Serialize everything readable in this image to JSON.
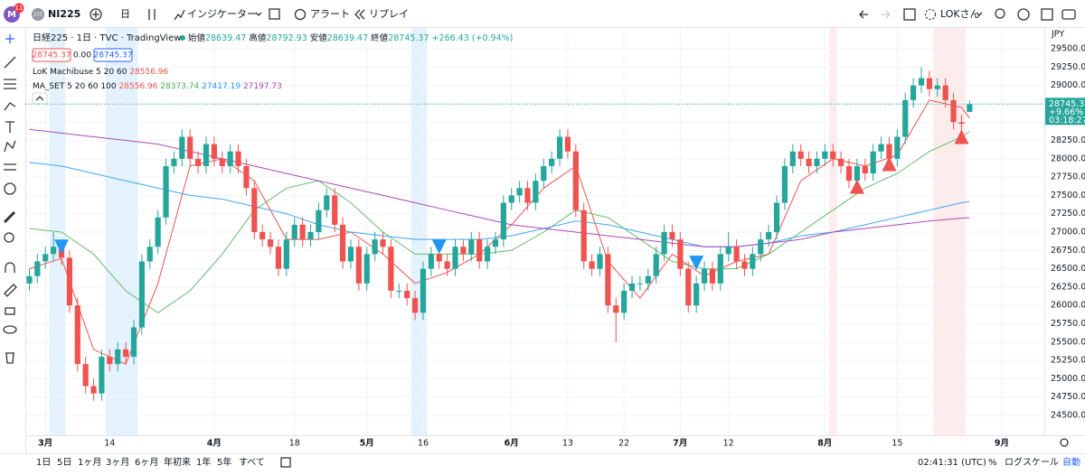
{
  "toolbar": {
    "badge": "11",
    "avatar": "M",
    "symbol_icon": "225",
    "symbol": "NI225",
    "interval": "日",
    "indicators": "インジケーター",
    "alert": "アラート",
    "replay": "リプレイ",
    "user": "LOKさん"
  },
  "legend": {
    "title": "日経225 · 1日 · TVC · TradingView",
    "ohlc_labels": [
      "始値",
      "高値",
      "安値",
      "終値"
    ],
    "change": "+266.43",
    "change_pct": "(+0.94%)",
    "spread": "0.00",
    "indicator1": "LoK Machibuse 5 20 60",
    "indicator2": "MA_SET 5 20 60 100"
  },
  "chart_data": {
    "type": "candlestick",
    "up_color": "#26a69a",
    "down_color": "#ef5350",
    "grid": true,
    "currency": "JPY",
    "candles": [
      [
        26300,
        26500,
        26200,
        26400
      ],
      [
        26400,
        26700,
        26300,
        26600
      ],
      [
        26600,
        26800,
        26500,
        26700
      ],
      [
        26700,
        27000,
        26600,
        26800
      ],
      [
        26800,
        26900,
        26550,
        26650
      ],
      [
        26650,
        26750,
        25900,
        26000
      ],
      [
        26000,
        26100,
        25100,
        25200
      ],
      [
        25200,
        25300,
        24800,
        24900
      ],
      [
        24900,
        25000,
        24700,
        24800
      ],
      [
        24800,
        25400,
        24700,
        25300
      ],
      [
        25300,
        25400,
        25100,
        25200
      ],
      [
        25200,
        25500,
        25100,
        25400
      ],
      [
        25400,
        25500,
        25200,
        25300
      ],
      [
        25300,
        25800,
        25200,
        25700
      ],
      [
        25700,
        26700,
        25600,
        26600
      ],
      [
        26600,
        26900,
        26500,
        26800
      ],
      [
        26800,
        27300,
        26700,
        27200
      ],
      [
        27200,
        28000,
        27100,
        27900
      ],
      [
        27900,
        28100,
        27800,
        28000
      ],
      [
        28000,
        28400,
        27900,
        28300
      ],
      [
        28300,
        28400,
        27900,
        28000
      ],
      [
        28000,
        28100,
        27800,
        27900
      ],
      [
        27900,
        28300,
        27800,
        28200
      ],
      [
        28200,
        28300,
        27900,
        28000
      ],
      [
        28000,
        28100,
        27800,
        27900
      ],
      [
        27900,
        28200,
        27800,
        28100
      ],
      [
        28100,
        28200,
        27800,
        27900
      ],
      [
        27900,
        28000,
        27500,
        27600
      ],
      [
        27600,
        27700,
        26900,
        27000
      ],
      [
        27000,
        27100,
        26800,
        26900
      ],
      [
        26900,
        27000,
        26700,
        26800
      ],
      [
        26800,
        26900,
        26400,
        26500
      ],
      [
        26500,
        27000,
        26400,
        26900
      ],
      [
        26900,
        27200,
        26800,
        27100
      ],
      [
        27100,
        27200,
        26800,
        26900
      ],
      [
        26900,
        27100,
        26800,
        27000
      ],
      [
        27000,
        27400,
        26900,
        27300
      ],
      [
        27300,
        27600,
        27200,
        27500
      ],
      [
        27500,
        27600,
        27000,
        27100
      ],
      [
        27100,
        27200,
        26500,
        26600
      ],
      [
        26600,
        26900,
        26500,
        26800
      ],
      [
        26800,
        26900,
        26200,
        26300
      ],
      [
        26300,
        26800,
        26200,
        26700
      ],
      [
        26700,
        27000,
        26600,
        26900
      ],
      [
        26900,
        27000,
        26700,
        26800
      ],
      [
        26800,
        26900,
        26100,
        26200
      ],
      [
        26200,
        26300,
        26100,
        26200
      ],
      [
        26200,
        26300,
        26000,
        26100
      ],
      [
        26100,
        26200,
        25800,
        25900
      ],
      [
        25900,
        26600,
        25800,
        26500
      ],
      [
        26500,
        26800,
        26400,
        26700
      ],
      [
        26700,
        26800,
        26500,
        26600
      ],
      [
        26600,
        26700,
        26400,
        26500
      ],
      [
        26500,
        26900,
        26400,
        26800
      ],
      [
        26800,
        26900,
        26600,
        26700
      ],
      [
        26700,
        27000,
        26600,
        26900
      ],
      [
        26900,
        27000,
        26500,
        26600
      ],
      [
        26600,
        26900,
        26500,
        26800
      ],
      [
        26800,
        27000,
        26700,
        26900
      ],
      [
        26900,
        27500,
        26800,
        27400
      ],
      [
        27400,
        27600,
        27300,
        27500
      ],
      [
        27500,
        27700,
        27400,
        27600
      ],
      [
        27600,
        27700,
        27300,
        27400
      ],
      [
        27400,
        27800,
        27300,
        27700
      ],
      [
        27700,
        28000,
        27600,
        27900
      ],
      [
        27900,
        28100,
        27800,
        28000
      ],
      [
        28000,
        28400,
        27900,
        28300
      ],
      [
        28300,
        28400,
        28000,
        28100
      ],
      [
        28100,
        28200,
        27200,
        27300
      ],
      [
        27300,
        27400,
        26500,
        26600
      ],
      [
        26600,
        26700,
        26400,
        26500
      ],
      [
        26500,
        26800,
        26400,
        26700
      ],
      [
        26700,
        26800,
        25900,
        26000
      ],
      [
        26000,
        26100,
        25500,
        25900
      ],
      [
        25900,
        26300,
        25800,
        26200
      ],
      [
        26200,
        26400,
        26100,
        26300
      ],
      [
        26300,
        26400,
        26200,
        26300
      ],
      [
        26300,
        26500,
        26200,
        26400
      ],
      [
        26400,
        26800,
        26300,
        26700
      ],
      [
        26700,
        27100,
        26600,
        27000
      ],
      [
        27000,
        27100,
        26800,
        26900
      ],
      [
        26900,
        27000,
        26400,
        26500
      ],
      [
        26500,
        26600,
        25900,
        26000
      ],
      [
        26000,
        26400,
        25900,
        26300
      ],
      [
        26300,
        26600,
        26200,
        26500
      ],
      [
        26500,
        26600,
        26200,
        26300
      ],
      [
        26300,
        26800,
        26200,
        26700
      ],
      [
        26700,
        27000,
        26600,
        26800
      ],
      [
        26800,
        26900,
        26500,
        26600
      ],
      [
        26600,
        26700,
        26400,
        26500
      ],
      [
        26500,
        26800,
        26400,
        26700
      ],
      [
        26700,
        27000,
        26600,
        26900
      ],
      [
        26900,
        27100,
        26800,
        27000
      ],
      [
        27000,
        27500,
        26900,
        27400
      ],
      [
        27400,
        28000,
        27300,
        27900
      ],
      [
        27900,
        28200,
        27800,
        28100
      ],
      [
        28100,
        28200,
        27900,
        28000
      ],
      [
        28000,
        28100,
        27800,
        27900
      ],
      [
        27900,
        28100,
        27800,
        28000
      ],
      [
        28000,
        28200,
        27900,
        28100
      ],
      [
        28100,
        28200,
        27900,
        28000
      ],
      [
        28000,
        28100,
        27800,
        27900
      ],
      [
        27900,
        28000,
        27600,
        27700
      ],
      [
        27700,
        28000,
        27600,
        27900
      ],
      [
        27900,
        28000,
        27700,
        27800
      ],
      [
        27800,
        28200,
        27700,
        28100
      ],
      [
        28100,
        28300,
        28000,
        28200
      ],
      [
        28200,
        28300,
        27900,
        28000
      ],
      [
        28000,
        28400,
        27900,
        28300
      ],
      [
        28300,
        28900,
        28200,
        28800
      ],
      [
        28800,
        29100,
        28700,
        29000
      ],
      [
        29000,
        29250,
        28900,
        29100
      ],
      [
        29100,
        29200,
        28850,
        28950
      ],
      [
        28950,
        29100,
        28850,
        29000
      ],
      [
        29000,
        29100,
        28700,
        28800
      ],
      [
        28800,
        28900,
        28400,
        28500
      ],
      [
        28500,
        28600,
        28380,
        28478.94
      ],
      [
        28639.47,
        28792.93,
        28639.47,
        28745.37
      ]
    ],
    "ma": [
      {
        "color": "#f05350",
        "x": [
          0,
          4,
          8,
          12,
          16,
          20,
          24,
          28,
          32,
          36,
          40,
          44,
          48,
          52,
          56,
          60,
          64,
          68,
          72,
          76,
          80,
          84,
          88,
          92,
          96,
          100,
          104,
          108,
          112,
          116,
          117
        ],
        "values": [
          26500,
          26640,
          25400,
          25200,
          26300,
          27900,
          28000,
          27700,
          26900,
          26900,
          27000,
          26700,
          26300,
          26450,
          26700,
          27100,
          27600,
          27900,
          26600,
          26100,
          26700,
          26400,
          26600,
          26700,
          27700,
          28000,
          27900,
          28050,
          28800,
          28700,
          28556.96
        ]
      },
      {
        "color": "#66bb6a",
        "x": [
          0,
          4,
          8,
          12,
          16,
          20,
          24,
          28,
          32,
          36,
          40,
          44,
          48,
          52,
          56,
          60,
          64,
          68,
          72,
          76,
          80,
          84,
          88,
          92,
          96,
          100,
          104,
          108,
          112,
          116,
          117
        ],
        "values": [
          27050,
          27000,
          26700,
          26200,
          25900,
          26200,
          26700,
          27300,
          27600,
          27700,
          27400,
          27000,
          26700,
          26700,
          26700,
          26750,
          27000,
          27300,
          27200,
          26900,
          26600,
          26500,
          26500,
          26700,
          27000,
          27300,
          27600,
          27800,
          28100,
          28300,
          28373.74
        ]
      },
      {
        "color": "#42a5f5",
        "x": [
          0,
          4,
          8,
          12,
          16,
          20,
          24,
          28,
          32,
          36,
          40,
          44,
          48,
          52,
          56,
          60,
          64,
          68,
          72,
          76,
          80,
          84,
          88,
          92,
          96,
          100,
          104,
          108,
          112,
          116,
          117
        ],
        "values": [
          27950,
          27900,
          27800,
          27700,
          27600,
          27500,
          27450,
          27350,
          27250,
          27100,
          27000,
          26950,
          26900,
          26900,
          26900,
          26950,
          27050,
          27150,
          27100,
          27000,
          26900,
          26800,
          26800,
          26850,
          26950,
          27000,
          27100,
          27200,
          27300,
          27400,
          27417.19
        ]
      },
      {
        "color": "#ab47bc",
        "x": [
          0,
          4,
          8,
          12,
          16,
          20,
          24,
          28,
          32,
          36,
          40,
          44,
          48,
          52,
          56,
          60,
          64,
          68,
          72,
          76,
          80,
          84,
          88,
          92,
          96,
          100,
          104,
          108,
          112,
          116,
          117
        ],
        "values": [
          28400,
          28350,
          28300,
          28250,
          28200,
          28100,
          28000,
          27900,
          27800,
          27700,
          27600,
          27500,
          27400,
          27300,
          27200,
          27100,
          27050,
          27000,
          26950,
          26900,
          26850,
          26800,
          26800,
          26850,
          26900,
          27000,
          27050,
          27100,
          27150,
          27190,
          27197.73
        ]
      }
    ],
    "highlights": [
      {
        "from": 3,
        "to": 4,
        "color": "#e3f2fd"
      },
      {
        "from": 10,
        "to": 13,
        "color": "#e3f2fd"
      },
      {
        "from": 48,
        "to": 49,
        "color": "#e3f2fd"
      },
      {
        "from": 100,
        "to": 100,
        "color": "#fdecec"
      },
      {
        "from": 113,
        "to": 116,
        "color": "#fdecec"
      }
    ],
    "signals": [
      {
        "x": 4,
        "y": 26800,
        "shape": "down",
        "color": "#2196f3"
      },
      {
        "x": 51,
        "y": 26800,
        "shape": "down",
        "color": "#2196f3"
      },
      {
        "x": 83,
        "y": 26580,
        "shape": "down",
        "color": "#2196f3"
      },
      {
        "x": 103,
        "y": 27620,
        "shape": "up",
        "color": "#f05350"
      },
      {
        "x": 107,
        "y": 27930,
        "shape": "up",
        "color": "#f05350"
      },
      {
        "x": 116,
        "y": 28300,
        "shape": "up",
        "color": "#f05350"
      }
    ],
    "last_price": {
      "change_pct": "+9.66%",
      "countdown": "03:18:27"
    },
    "xlim": [
      -0.5,
      126.3
    ],
    "xticks": [
      {
        "value": 2,
        "label": "3月"
      },
      10,
      {
        "value": 23,
        "label": "4月"
      },
      33,
      {
        "value": 42,
        "label": "5月"
      },
      49,
      {
        "value": 60,
        "label": "6月"
      },
      67,
      74,
      {
        "value": 81,
        "label": "7月"
      },
      87,
      {
        "value": 99,
        "label": "8月"
      },
      108,
      {
        "value": 121,
        "label": "9月"
      }
    ],
    "xtick_labels": [
      "14",
      "18",
      "16",
      "13",
      "22",
      "12",
      "15"
    ],
    "ylim": [
      24229,
      29796
    ],
    "yticks": [
      {
        "value": 24500,
        "label": "24500.00"
      },
      {
        "value": 24750,
        "label": "24750.00"
      },
      {
        "value": 25000,
        "label": "25000.00"
      },
      {
        "value": 25250,
        "label": "25250.00"
      },
      {
        "value": 25500,
        "label": "25500.00"
      },
      {
        "value": 25750,
        "label": "25750.00"
      },
      {
        "value": 26000,
        "label": "26000.00"
      },
      {
        "value": 26250,
        "label": "26250.00"
      },
      {
        "value": 26500,
        "label": "26500.00"
      },
      {
        "value": 26750,
        "label": "26750.00"
      },
      {
        "value": 27000,
        "label": "27000.00"
      },
      {
        "value": 27250,
        "label": "27250.00"
      },
      {
        "value": 27500,
        "label": "27500.00"
      },
      {
        "value": 27750,
        "label": "27750.00"
      },
      {
        "value": 28000,
        "label": "28000.00"
      },
      {
        "value": 28250,
        "label": "28250.00"
      },
      {
        "value": 28500,
        "label": "28500.00"
      },
      {
        "value": 28750,
        "label": "28750.00"
      },
      {
        "value": 29000,
        "label": "29000.00"
      },
      {
        "value": 29250,
        "label": "29250.00"
      },
      {
        "value": 29500,
        "label": "29500.00"
      }
    ]
  },
  "bottom": {
    "ranges": [
      "1日",
      "5日",
      "1ヶ月",
      "3ヶ月",
      "6ヶ月",
      "年初来",
      "1年",
      "5年",
      "すべて"
    ],
    "clock": "02:41:31 (UTC)",
    "percent": "%",
    "log": "ログスケール",
    "auto": "自動"
  }
}
